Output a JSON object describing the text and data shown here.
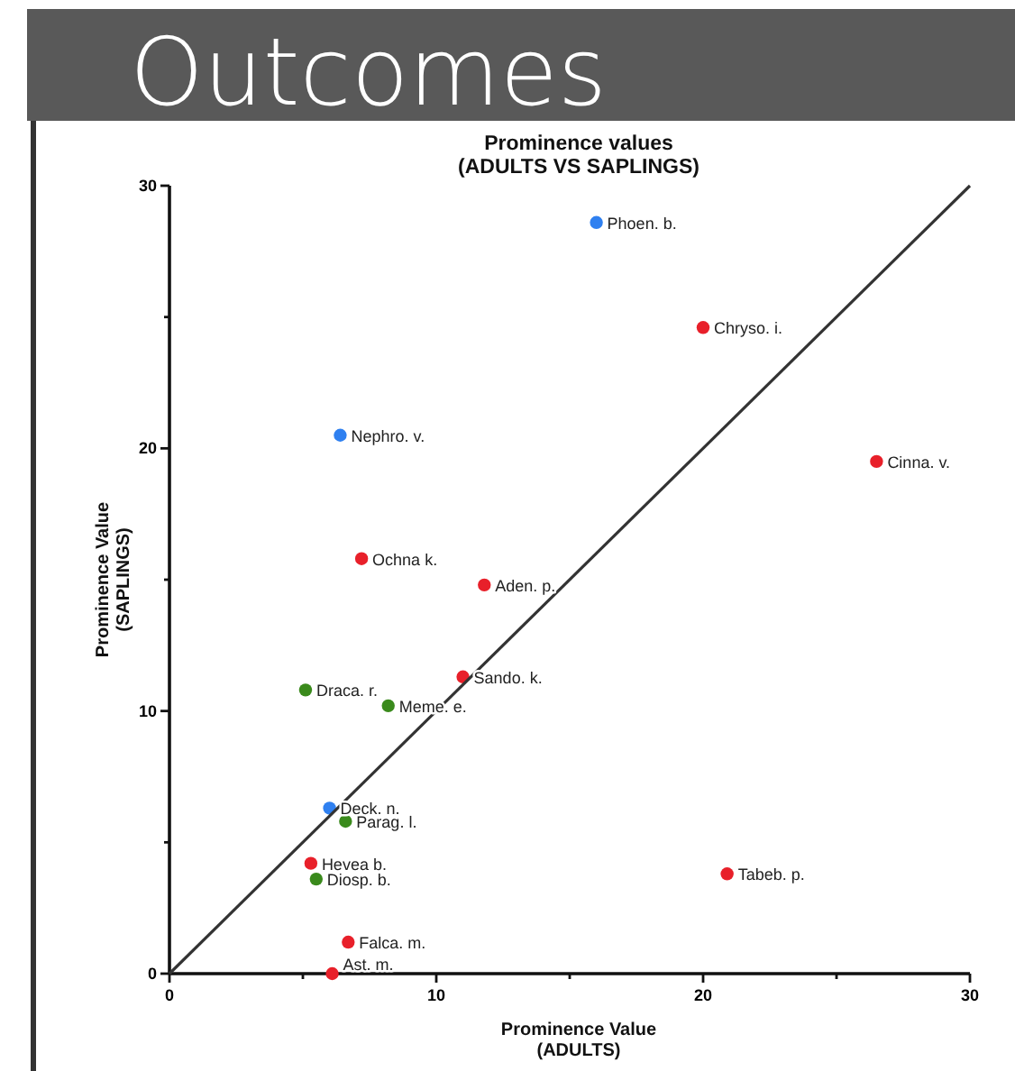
{
  "chart_data": {
    "type": "scatter",
    "title": "Prominence values\n(ADULTS VS SAPLINGS)",
    "xlabel": "Prominence Value\n(ADULTS)",
    "ylabel": "Prominence Value\n(SAPLINGS)",
    "annotations": [
      "Outcomes",
      {
        "text": "Phoen. b.",
        "x": 16.0,
        "y": 28.6
      },
      {
        "text": "Chryso. i.",
        "x": 20.0,
        "y": 24.6
      },
      {
        "text": "Nephro. v.",
        "x": 6.4,
        "y": 20.5
      },
      {
        "text": "Cinna. v.",
        "x": 26.5,
        "y": 19.5
      },
      {
        "text": "Ochna k.",
        "x": 7.2,
        "y": 15.8
      },
      {
        "text": "Aden. p.",
        "x": 11.8,
        "y": 14.8
      },
      {
        "text": "Sando. k.",
        "x": 11.0,
        "y": 11.3
      },
      {
        "text": "Draca. r.",
        "x": 5.1,
        "y": 10.8
      },
      {
        "text": "Meme. e.",
        "x": 8.2,
        "y": 10.2
      },
      {
        "text": "Deck. n.",
        "x": 6.0,
        "y": 6.3
      },
      {
        "text": "Parag. l.",
        "x": 6.6,
        "y": 5.8
      },
      {
        "text": "Hevea b.",
        "x": 5.3,
        "y": 4.2
      },
      {
        "text": "Diosp. b.",
        "x": 5.5,
        "y": 3.6
      },
      {
        "text": "Tabeb. p.",
        "x": 20.9,
        "y": 3.8
      },
      {
        "text": "Falca. m.",
        "x": 6.7,
        "y": 1.2
      },
      {
        "text": "Ast. m.",
        "x": 6.1,
        "y": 0
      }
    ],
    "series": [
      {
        "color": "#2f80f0",
        "x": [
          16.0,
          6.4,
          6.0
        ],
        "values": [
          28.6,
          20.5,
          6.3
        ]
      },
      {
        "color": "#e8202a",
        "x": [
          20.0,
          26.5,
          7.2,
          11.8,
          11.0,
          5.3,
          20.9,
          6.7,
          6.1
        ],
        "values": [
          24.6,
          19.5,
          15.8,
          14.8,
          11.3,
          4.2,
          3.8,
          1.2,
          0
        ]
      },
      {
        "color": "#3a8a1c",
        "x": [
          5.1,
          8.2,
          6.6,
          5.5
        ],
        "values": [
          10.8,
          10.2,
          5.8,
          3.6
        ]
      },
      {
        "type": "line",
        "color": "#333333",
        "x": [
          0,
          30
        ],
        "values": [
          0,
          30
        ],
        "marker": "none"
      }
    ],
    "marker": "circle",
    "xlim": [
      0,
      30
    ],
    "ylim": [
      0,
      30
    ],
    "xticks": [
      0,
      {
        "value": 5,
        "label": null
      },
      10,
      {
        "value": 15,
        "label": null
      },
      20,
      {
        "value": 25,
        "label": null
      },
      30
    ],
    "yticks": [
      0,
      {
        "value": 5,
        "label": null
      },
      10,
      {
        "value": 15,
        "label": null
      },
      20,
      {
        "value": 25,
        "label": null
      },
      30
    ],
    "grid": false
  }
}
